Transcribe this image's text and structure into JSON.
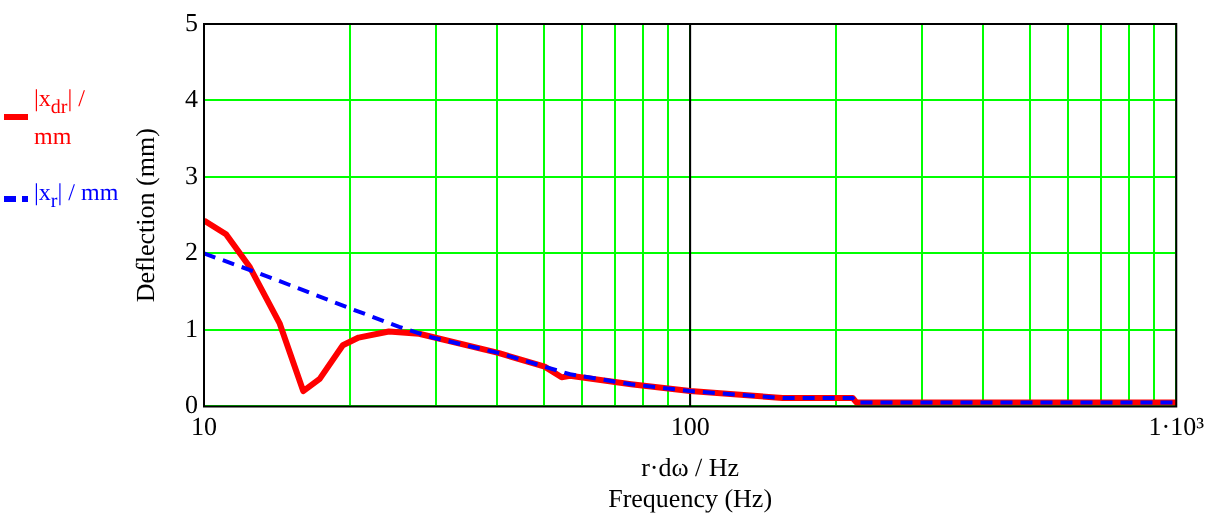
{
  "chart_data": {
    "type": "line",
    "xlabel": "r·dω / Hz\nFrequency (Hz)",
    "ylabel": "Deflection (mm)",
    "log": "x",
    "xlim": [
      10,
      1000
    ],
    "ylim": [
      0,
      5
    ],
    "xticks": [
      10,
      {
        "value": 20,
        "label": null
      },
      {
        "value": 30,
        "label": null
      },
      {
        "value": 40,
        "label": null
      },
      {
        "value": 50,
        "label": null
      },
      {
        "value": 60,
        "label": null
      },
      {
        "value": 70,
        "label": null
      },
      {
        "value": 80,
        "label": null
      },
      {
        "value": 90,
        "label": null
      },
      100,
      {
        "value": 200,
        "label": null
      },
      {
        "value": 300,
        "label": null
      },
      {
        "value": 400,
        "label": null
      },
      {
        "value": 500,
        "label": null
      },
      {
        "value": 600,
        "label": null
      },
      {
        "value": 700,
        "label": null
      },
      {
        "value": 800,
        "label": null
      },
      {
        "value": 900,
        "label": null
      },
      {
        "value": 1000,
        "label": "1·10³"
      }
    ],
    "yticks": [
      0,
      1,
      2,
      3,
      4,
      5
    ],
    "grid": true,
    "legend": "left",
    "marker": "none",
    "ref_lines": [
      {
        "axis": "x",
        "value": 100,
        "color": "#000000"
      }
    ],
    "series": [
      {
        "name": "|x$_{d}$$_{r}$| / mm",
        "color": "#ff0000",
        "line_style": "solid",
        "x": [
          10,
          11.1,
          12.4,
          14.3,
          16,
          17.3,
          19.3,
          20.8,
          24,
          27.7,
          40.3,
          50.2,
          54.4,
          56.6,
          75.6,
          100,
          155,
          216,
          220,
          1000
        ],
        "values": [
          2.43,
          2.25,
          1.83,
          1.09,
          0.2,
          0.36,
          0.8,
          0.9,
          0.98,
          0.95,
          0.7,
          0.52,
          0.38,
          0.4,
          0.29,
          0.2,
          0.11,
          0.11,
          0.05,
          0.05
        ]
      },
      {
        "name": "|x$_{r}$| / mm",
        "color": "#0000ff",
        "line_style": "dashed",
        "x": [
          10,
          12.6,
          15.7,
          20.2,
          25.2,
          29.5,
          40.3,
          50.2,
          56.6,
          75.6,
          100,
          155,
          216,
          220,
          1000
        ],
        "values": [
          2.0,
          1.77,
          1.54,
          1.27,
          1.04,
          0.9,
          0.7,
          0.52,
          0.42,
          0.29,
          0.2,
          0.11,
          0.11,
          0.05,
          0.05
        ]
      }
    ]
  }
}
